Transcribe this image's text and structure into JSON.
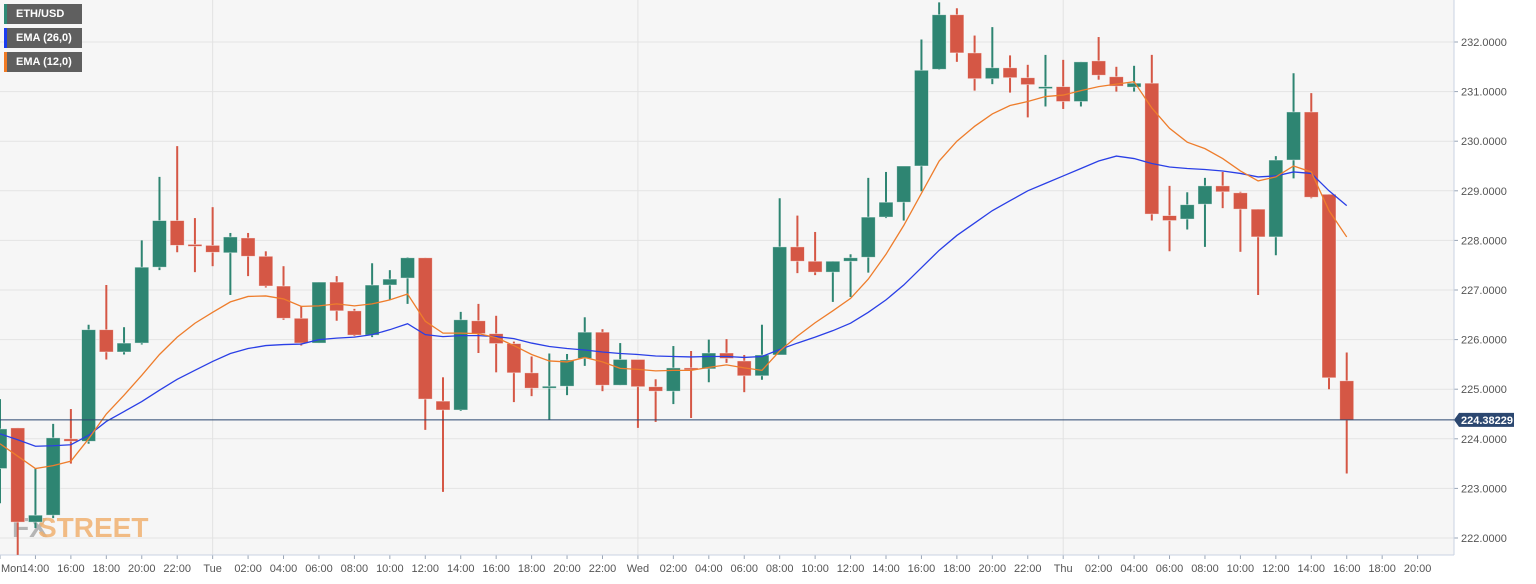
{
  "legend": [
    {
      "label": "ETH/USD",
      "color": "#2e8b76"
    },
    {
      "label": "EMA (26,0)",
      "color": "#1a3cf0"
    },
    {
      "label": "EMA (12,0)",
      "color": "#f07a24"
    }
  ],
  "watermark": {
    "fx": "FX",
    "street": "STREET"
  },
  "current_price": {
    "label": "224.38229",
    "value": 224.38229
  },
  "colors": {
    "bull": "#2e8572",
    "bear": "#d55745",
    "ema26": "#2a3fe6",
    "ema12": "#ee7d2c",
    "current_line": "#2b4770",
    "grid": "#e4e4e4",
    "plot_bg": "#f6f6f6"
  },
  "chart_data": {
    "type": "candlestick",
    "title": "ETH/USD",
    "xlabel": "",
    "ylabel": "",
    "ylim": [
      221.3,
      232.85
    ],
    "grid": true,
    "legend_position": "top-left",
    "y_ticks": [
      "232.0000",
      "231.0000",
      "230.0000",
      "229.0000",
      "228.0000",
      "227.0000",
      "226.0000",
      "225.0000",
      "224.0000",
      "223.0000",
      "222.0000"
    ],
    "x_ticks": [
      "Mon",
      "14:00",
      "16:00",
      "18:00",
      "20:00",
      "22:00",
      "Tue",
      "02:00",
      "04:00",
      "06:00",
      "08:00",
      "10:00",
      "12:00",
      "14:00",
      "16:00",
      "18:00",
      "20:00",
      "22:00",
      "Wed",
      "02:00",
      "04:00",
      "06:00",
      "08:00",
      "10:00",
      "12:00",
      "14:00",
      "16:00",
      "18:00",
      "20:00",
      "22:00",
      "Thu",
      "02:00",
      "04:00",
      "06:00",
      "08:00",
      "10:00",
      "12:00",
      "14:00",
      "16:00",
      "18:00",
      "20:00"
    ],
    "interval": "1h",
    "candles": [
      {
        "t": "Mon 12:00",
        "o": 223.4,
        "h": 224.8,
        "l": 222.7,
        "c": 224.2
      },
      {
        "t": "Mon 13:00",
        "o": 224.22,
        "h": 224.22,
        "l": 221.66,
        "c": 222.32
      },
      {
        "t": "Mon 14:00",
        "o": 222.32,
        "h": 223.4,
        "l": 222.2,
        "c": 222.46
      },
      {
        "t": "Mon 15:00",
        "o": 222.46,
        "h": 224.3,
        "l": 222.4,
        "c": 224.02
      },
      {
        "t": "Mon 16:00",
        "o": 224.0,
        "h": 224.6,
        "l": 223.5,
        "c": 223.95
      },
      {
        "t": "Mon 17:00",
        "o": 223.95,
        "h": 226.3,
        "l": 223.9,
        "c": 226.2
      },
      {
        "t": "Mon 18:00",
        "o": 226.2,
        "h": 227.1,
        "l": 225.6,
        "c": 225.75
      },
      {
        "t": "Mon 19:00",
        "o": 225.75,
        "h": 226.25,
        "l": 225.7,
        "c": 225.93
      },
      {
        "t": "Mon 20:00",
        "o": 225.93,
        "h": 228.0,
        "l": 225.9,
        "c": 227.46
      },
      {
        "t": "Mon 21:00",
        "o": 227.46,
        "h": 229.28,
        "l": 227.4,
        "c": 228.4
      },
      {
        "t": "Mon 22:00",
        "o": 228.4,
        "h": 229.9,
        "l": 227.76,
        "c": 227.9
      },
      {
        "t": "Mon 23:00",
        "o": 227.92,
        "h": 228.45,
        "l": 227.36,
        "c": 227.88
      },
      {
        "t": "Tue 00:00",
        "o": 227.9,
        "h": 228.67,
        "l": 227.48,
        "c": 227.76
      },
      {
        "t": "Tue 01:00",
        "o": 227.75,
        "h": 228.15,
        "l": 226.9,
        "c": 228.07
      },
      {
        "t": "Tue 02:00",
        "o": 228.05,
        "h": 228.15,
        "l": 227.28,
        "c": 227.68
      },
      {
        "t": "Tue 03:00",
        "o": 227.68,
        "h": 227.78,
        "l": 227.05,
        "c": 227.08
      },
      {
        "t": "Tue 04:00",
        "o": 227.08,
        "h": 227.48,
        "l": 226.4,
        "c": 226.43
      },
      {
        "t": "Tue 05:00",
        "o": 226.43,
        "h": 226.68,
        "l": 225.88,
        "c": 225.93
      },
      {
        "t": "Tue 06:00",
        "o": 225.93,
        "h": 227.16,
        "l": 225.93,
        "c": 227.16
      },
      {
        "t": "Tue 07:00",
        "o": 227.16,
        "h": 227.28,
        "l": 226.38,
        "c": 226.58
      },
      {
        "t": "Tue 08:00",
        "o": 226.58,
        "h": 226.62,
        "l": 226.07,
        "c": 226.09
      },
      {
        "t": "Tue 09:00",
        "o": 226.09,
        "h": 227.54,
        "l": 226.05,
        "c": 227.1
      },
      {
        "t": "Tue 10:00",
        "o": 227.1,
        "h": 227.4,
        "l": 226.8,
        "c": 227.22
      },
      {
        "t": "Tue 11:00",
        "o": 227.24,
        "h": 227.66,
        "l": 226.72,
        "c": 227.65
      },
      {
        "t": "Tue 12:00",
        "o": 227.65,
        "h": 227.65,
        "l": 224.18,
        "c": 224.8
      },
      {
        "t": "Tue 13:00",
        "o": 224.76,
        "h": 225.24,
        "l": 222.93,
        "c": 224.58
      },
      {
        "t": "Tue 14:00",
        "o": 224.58,
        "h": 226.56,
        "l": 224.56,
        "c": 226.4
      },
      {
        "t": "Tue 15:00",
        "o": 226.38,
        "h": 226.72,
        "l": 225.73,
        "c": 226.12
      },
      {
        "t": "Tue 16:00",
        "o": 226.12,
        "h": 226.48,
        "l": 225.34,
        "c": 225.92
      },
      {
        "t": "Tue 17:00",
        "o": 225.92,
        "h": 225.96,
        "l": 224.74,
        "c": 225.33
      },
      {
        "t": "Tue 18:00",
        "o": 225.33,
        "h": 225.66,
        "l": 224.86,
        "c": 225.02
      },
      {
        "t": "Tue 19:00",
        "o": 225.02,
        "h": 225.72,
        "l": 224.38,
        "c": 225.06
      },
      {
        "t": "Tue 20:00",
        "o": 225.06,
        "h": 225.71,
        "l": 224.88,
        "c": 225.59
      },
      {
        "t": "Tue 21:00",
        "o": 225.62,
        "h": 226.45,
        "l": 225.47,
        "c": 226.15
      },
      {
        "t": "Tue 22:00",
        "o": 226.15,
        "h": 226.21,
        "l": 224.96,
        "c": 225.08
      },
      {
        "t": "Tue 23:00",
        "o": 225.08,
        "h": 225.93,
        "l": 225.08,
        "c": 225.6
      },
      {
        "t": "Wed 00:00",
        "o": 225.6,
        "h": 225.6,
        "l": 224.22,
        "c": 225.05
      },
      {
        "t": "Wed 01:00",
        "o": 225.05,
        "h": 225.2,
        "l": 224.34,
        "c": 224.96
      },
      {
        "t": "Wed 02:00",
        "o": 224.96,
        "h": 225.87,
        "l": 224.7,
        "c": 225.43
      },
      {
        "t": "Wed 03:00",
        "o": 225.43,
        "h": 225.77,
        "l": 224.42,
        "c": 225.41
      },
      {
        "t": "Wed 04:00",
        "o": 225.41,
        "h": 226.0,
        "l": 225.14,
        "c": 225.73
      },
      {
        "t": "Wed 05:00",
        "o": 225.73,
        "h": 226.01,
        "l": 225.53,
        "c": 225.62
      },
      {
        "t": "Wed 06:00",
        "o": 225.57,
        "h": 225.69,
        "l": 224.94,
        "c": 225.27
      },
      {
        "t": "Wed 07:00",
        "o": 225.27,
        "h": 226.3,
        "l": 225.19,
        "c": 225.69
      },
      {
        "t": "Wed 08:00",
        "o": 225.69,
        "h": 228.85,
        "l": 225.69,
        "c": 227.87
      },
      {
        "t": "Wed 09:00",
        "o": 227.87,
        "h": 228.5,
        "l": 227.34,
        "c": 227.58
      },
      {
        "t": "Wed 10:00",
        "o": 227.58,
        "h": 228.17,
        "l": 227.3,
        "c": 227.36
      },
      {
        "t": "Wed 11:00",
        "o": 227.36,
        "h": 227.58,
        "l": 226.76,
        "c": 227.58
      },
      {
        "t": "Wed 12:00",
        "o": 227.58,
        "h": 227.72,
        "l": 226.86,
        "c": 227.65
      },
      {
        "t": "Wed 13:00",
        "o": 227.66,
        "h": 229.26,
        "l": 227.35,
        "c": 228.47
      },
      {
        "t": "Wed 14:00",
        "o": 228.47,
        "h": 229.38,
        "l": 228.45,
        "c": 228.77
      },
      {
        "t": "Wed 15:00",
        "o": 228.77,
        "h": 229.5,
        "l": 228.4,
        "c": 229.5
      },
      {
        "t": "Wed 16:00",
        "o": 229.5,
        "h": 232.05,
        "l": 228.99,
        "c": 231.43
      },
      {
        "t": "Wed 17:00",
        "o": 231.45,
        "h": 232.8,
        "l": 231.44,
        "c": 232.55
      },
      {
        "t": "Wed 18:00",
        "o": 232.55,
        "h": 232.68,
        "l": 231.6,
        "c": 231.78
      },
      {
        "t": "Wed 19:00",
        "o": 231.78,
        "h": 232.13,
        "l": 231.02,
        "c": 231.26
      },
      {
        "t": "Wed 20:00",
        "o": 231.26,
        "h": 232.3,
        "l": 231.15,
        "c": 231.48
      },
      {
        "t": "Wed 21:00",
        "o": 231.48,
        "h": 231.73,
        "l": 230.98,
        "c": 231.28
      },
      {
        "t": "Wed 22:00",
        "o": 231.28,
        "h": 231.54,
        "l": 230.48,
        "c": 231.14
      },
      {
        "t": "Wed 23:00",
        "o": 231.08,
        "h": 231.74,
        "l": 230.7,
        "c": 231.1
      },
      {
        "t": "Thu 00:00",
        "o": 231.1,
        "h": 231.64,
        "l": 230.65,
        "c": 230.8
      },
      {
        "t": "Thu 01:00",
        "o": 230.8,
        "h": 231.6,
        "l": 230.7,
        "c": 231.6
      },
      {
        "t": "Thu 02:00",
        "o": 231.62,
        "h": 232.1,
        "l": 231.24,
        "c": 231.33
      },
      {
        "t": "Thu 03:00",
        "o": 231.3,
        "h": 231.5,
        "l": 231.0,
        "c": 231.11
      },
      {
        "t": "Thu 04:00",
        "o": 231.09,
        "h": 231.52,
        "l": 231.0,
        "c": 231.17
      },
      {
        "t": "Thu 05:00",
        "o": 231.17,
        "h": 231.74,
        "l": 228.4,
        "c": 228.53
      },
      {
        "t": "Thu 06:00",
        "o": 228.5,
        "h": 229.1,
        "l": 227.78,
        "c": 228.4
      },
      {
        "t": "Thu 07:00",
        "o": 228.43,
        "h": 228.97,
        "l": 228.22,
        "c": 228.72
      },
      {
        "t": "Thu 08:00",
        "o": 228.73,
        "h": 229.26,
        "l": 227.87,
        "c": 229.1
      },
      {
        "t": "Thu 09:00",
        "o": 229.1,
        "h": 229.38,
        "l": 228.65,
        "c": 228.98
      },
      {
        "t": "Thu 10:00",
        "o": 228.96,
        "h": 228.98,
        "l": 227.77,
        "c": 228.63
      },
      {
        "t": "Thu 11:00",
        "o": 228.63,
        "h": 228.63,
        "l": 226.9,
        "c": 228.07
      },
      {
        "t": "Thu 12:00",
        "o": 228.07,
        "h": 229.7,
        "l": 227.7,
        "c": 229.62
      },
      {
        "t": "Thu 13:00",
        "o": 229.62,
        "h": 231.37,
        "l": 229.25,
        "c": 230.59
      },
      {
        "t": "Thu 14:00",
        "o": 230.59,
        "h": 230.97,
        "l": 228.85,
        "c": 228.87
      },
      {
        "t": "Thu 15:00",
        "o": 228.93,
        "h": 228.93,
        "l": 225.0,
        "c": 225.23
      },
      {
        "t": "Thu 16:00",
        "o": 225.17,
        "h": 225.74,
        "l": 223.3,
        "c": 224.38
      }
    ],
    "series": [
      {
        "name": "EMA (26,0)",
        "values": [
          224.1,
          223.98,
          223.85,
          223.86,
          223.88,
          224.07,
          224.35,
          224.55,
          224.75,
          224.98,
          225.2,
          225.38,
          225.56,
          225.72,
          225.82,
          225.88,
          225.9,
          225.91,
          226.0,
          226.03,
          226.05,
          226.1,
          226.2,
          226.32,
          226.1,
          226.06,
          226.08,
          226.08,
          226.06,
          226.02,
          225.93,
          225.86,
          225.82,
          225.79,
          225.75,
          225.72,
          225.7,
          225.67,
          225.66,
          225.65,
          225.66,
          225.66,
          225.64,
          225.66,
          225.8,
          225.93,
          226.05,
          226.18,
          226.33,
          226.55,
          226.8,
          227.1,
          227.45,
          227.8,
          228.1,
          228.35,
          228.6,
          228.8,
          229.0,
          229.15,
          229.3,
          229.45,
          229.6,
          229.7,
          229.65,
          229.55,
          229.48,
          229.45,
          229.43,
          229.4,
          229.35,
          229.28,
          229.3,
          229.38,
          229.35,
          229.0,
          228.7
        ]
      },
      {
        "name": "EMA (12,0)",
        "values": [
          223.9,
          223.65,
          223.4,
          223.46,
          223.55,
          224.0,
          224.5,
          224.88,
          225.28,
          225.7,
          226.05,
          226.33,
          226.55,
          226.76,
          226.87,
          226.88,
          226.82,
          226.67,
          226.68,
          226.72,
          226.68,
          226.72,
          226.8,
          226.92,
          226.37,
          226.13,
          226.13,
          226.12,
          226.04,
          225.88,
          225.7,
          225.57,
          225.55,
          225.64,
          225.55,
          225.42,
          225.4,
          225.37,
          225.38,
          225.38,
          225.44,
          225.49,
          225.43,
          225.38,
          225.77,
          226.07,
          226.34,
          226.58,
          226.83,
          227.22,
          227.72,
          228.3,
          228.95,
          229.6,
          230.0,
          230.3,
          230.55,
          230.72,
          230.8,
          230.9,
          230.93,
          231.02,
          231.1,
          231.15,
          231.2,
          230.67,
          230.26,
          229.98,
          229.85,
          229.65,
          229.4,
          229.2,
          229.28,
          229.5,
          229.38,
          228.6,
          228.07
        ]
      }
    ]
  }
}
